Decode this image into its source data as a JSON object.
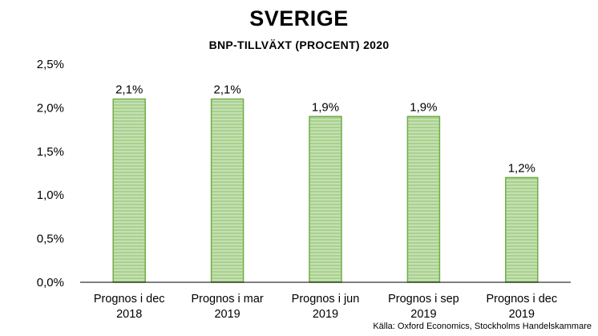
{
  "header": {
    "title": "SVERIGE",
    "subtitle": "BNP-TILLVÄXT (PROCENT) 2020"
  },
  "source": "Källa: Oxford Economics, Stockholms Handelskammare",
  "colors": {
    "bar_fill": "#a9d18e",
    "bar_stripe": "#c5e0b4",
    "bar_edge": "#70ad47",
    "axis": "#000000"
  },
  "chart_data": {
    "type": "bar",
    "title": "SVERIGE",
    "subtitle": "BNP-TILLVÄXT (PROCENT) 2020",
    "categories": [
      [
        "Prognos i dec",
        "2018"
      ],
      [
        "Prognos i mar",
        "2019"
      ],
      [
        "Prognos i jun",
        "2019"
      ],
      [
        "Prognos i sep",
        "2019"
      ],
      [
        "Prognos i dec",
        "2019"
      ]
    ],
    "values": [
      2.1,
      2.1,
      1.9,
      1.9,
      1.2
    ],
    "data_labels": [
      "2,1%",
      "2,1%",
      "1,9%",
      "1,9%",
      "1,2%"
    ],
    "ylim": [
      0,
      2.5
    ],
    "yticks": [
      0,
      0.5,
      1.0,
      1.5,
      2.0,
      2.5
    ],
    "ytick_labels": [
      "0,0%",
      "0,5%",
      "1,0%",
      "1,5%",
      "2,0%",
      "2,5%"
    ],
    "xlabel": "",
    "ylabel": "",
    "grid": false,
    "legend": "none"
  }
}
